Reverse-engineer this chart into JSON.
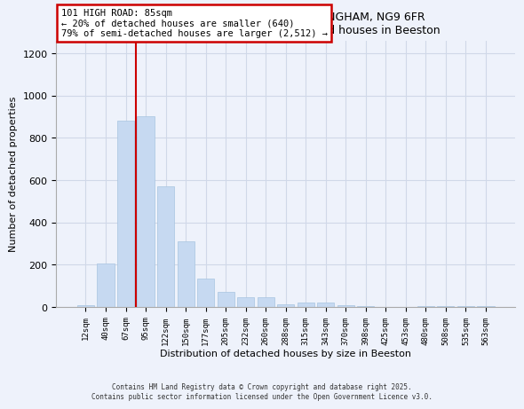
{
  "title_line1": "101, HIGH ROAD, TOTON, NOTTINGHAM, NG9 6FR",
  "title_line2": "Size of property relative to detached houses in Beeston",
  "xlabel": "Distribution of detached houses by size in Beeston",
  "ylabel": "Number of detached properties",
  "categories": [
    "12sqm",
    "40sqm",
    "67sqm",
    "95sqm",
    "122sqm",
    "150sqm",
    "177sqm",
    "205sqm",
    "232sqm",
    "260sqm",
    "288sqm",
    "315sqm",
    "343sqm",
    "370sqm",
    "398sqm",
    "425sqm",
    "453sqm",
    "480sqm",
    "508sqm",
    "535sqm",
    "563sqm"
  ],
  "values": [
    10,
    205,
    880,
    900,
    570,
    310,
    135,
    70,
    48,
    45,
    12,
    20,
    20,
    10,
    3,
    0,
    0,
    5,
    3,
    3,
    3
  ],
  "bar_color": "#c6d9f1",
  "bar_edge_color": "#a8c4e0",
  "vline_x": 2.5,
  "vline_color": "#cc0000",
  "annotation_title": "101 HIGH ROAD: 85sqm",
  "annotation_line1": "← 20% of detached houses are smaller (640)",
  "annotation_line2": "79% of semi-detached houses are larger (2,512) →",
  "annotation_box_color": "#cc0000",
  "ylim": [
    0,
    1260
  ],
  "yticks": [
    0,
    200,
    400,
    600,
    800,
    1000,
    1200
  ],
  "footnote_line1": "Contains HM Land Registry data © Crown copyright and database right 2025.",
  "footnote_line2": "Contains public sector information licensed under the Open Government Licence v3.0.",
  "bg_color": "#eef2fb",
  "plot_bg_color": "#eef2fb",
  "grid_color": "#d0d8e8"
}
